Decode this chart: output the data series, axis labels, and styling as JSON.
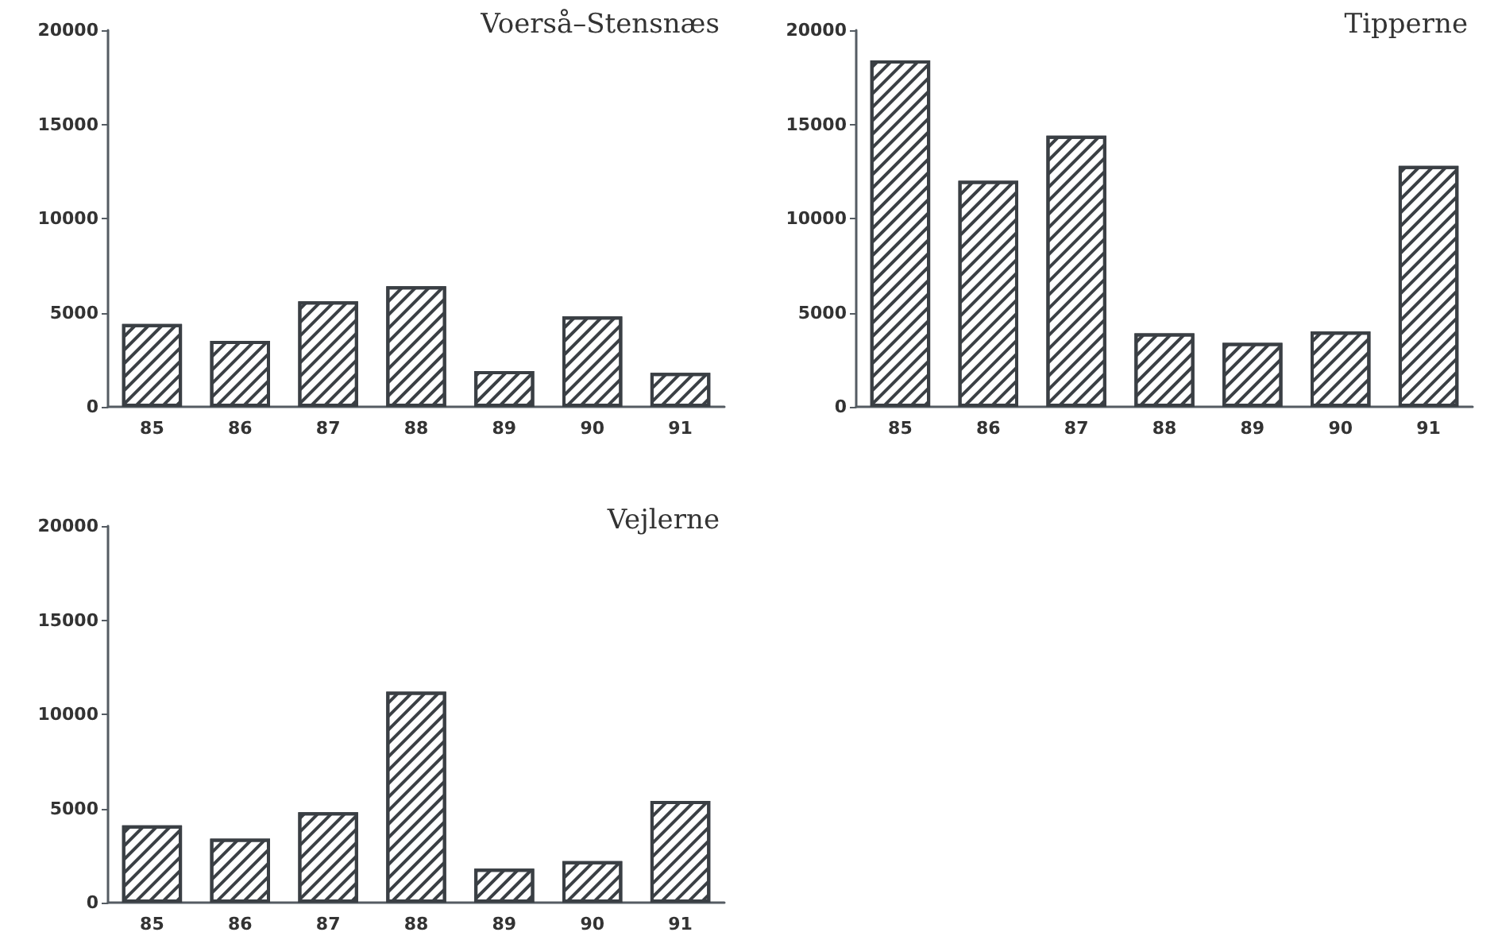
{
  "chart_data": [
    {
      "type": "bar",
      "title": "Voerså–Stensnæs",
      "categories": [
        "85",
        "86",
        "87",
        "88",
        "89",
        "90",
        "91"
      ],
      "values": [
        4400,
        3500,
        5600,
        6400,
        1900,
        4800,
        1800
      ],
      "color": "#ffffff",
      "ylim": [
        0,
        20000
      ],
      "yticks": [
        0,
        5000,
        10000,
        15000,
        20000
      ]
    },
    {
      "type": "bar",
      "title": "Tipperne",
      "categories": [
        "85",
        "86",
        "87",
        "88",
        "89",
        "90",
        "91"
      ],
      "values": [
        18400,
        12000,
        14400,
        3900,
        3400,
        4000,
        12800
      ],
      "color": "#ffffff",
      "ylim": [
        0,
        20000
      ],
      "yticks": [
        0,
        5000,
        10000,
        15000,
        20000
      ]
    },
    {
      "type": "bar",
      "title": "Vejlerne",
      "categories": [
        "85",
        "86",
        "87",
        "88",
        "89",
        "90",
        "91"
      ],
      "values": [
        4100,
        3400,
        4800,
        11200,
        1800,
        2200,
        5400
      ],
      "color": "#ffffff",
      "ylim": [
        0,
        20000
      ],
      "yticks": [
        0,
        5000,
        10000,
        15000,
        20000
      ]
    }
  ]
}
